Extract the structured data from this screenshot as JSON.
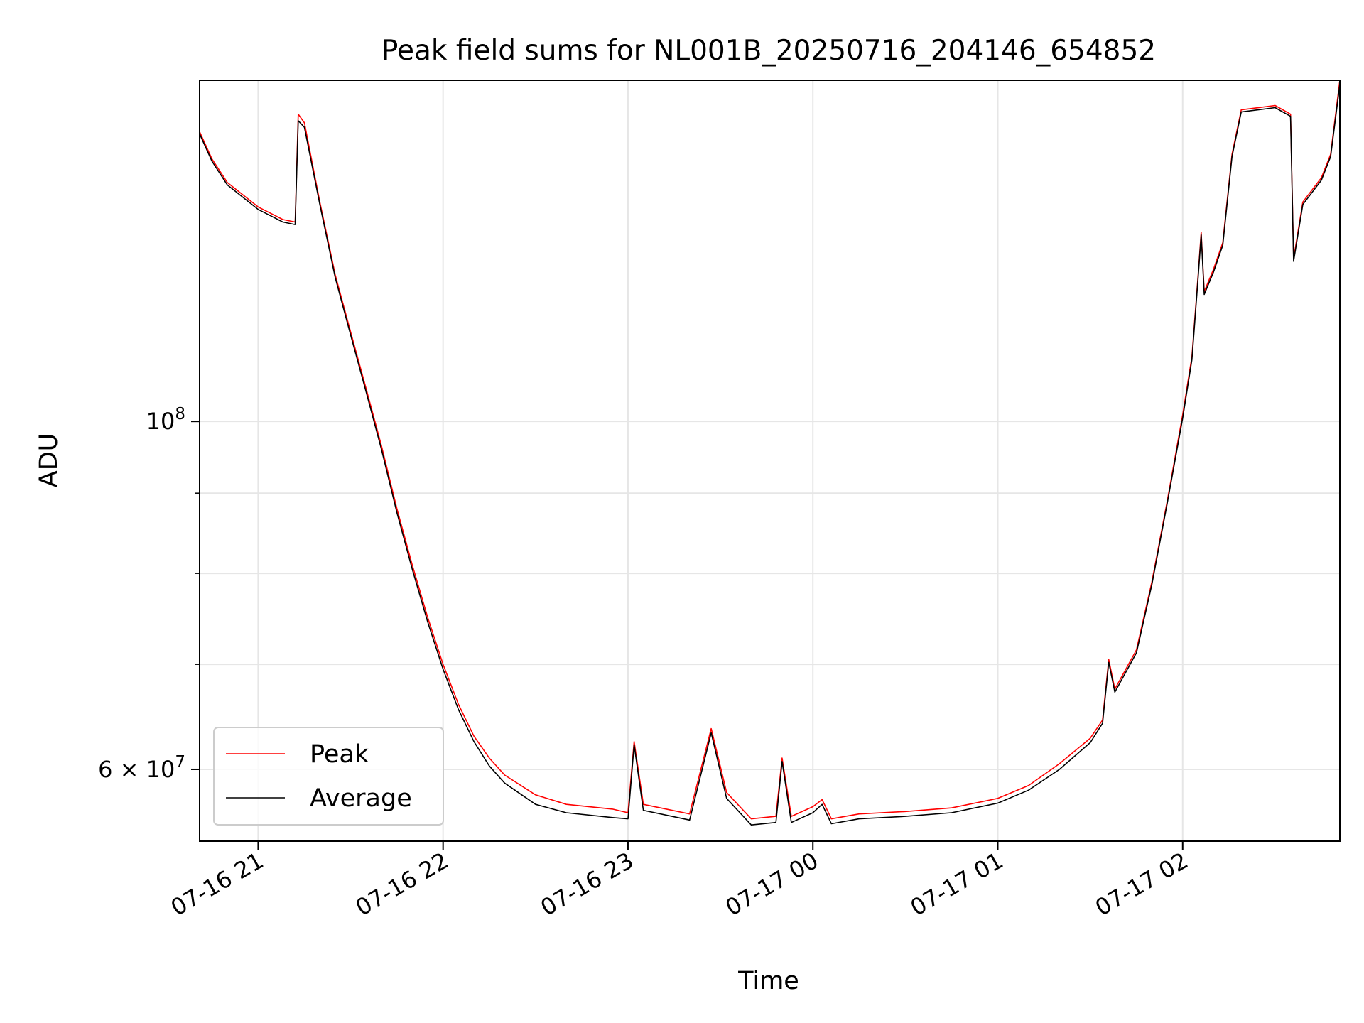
{
  "chart_data": {
    "type": "line",
    "title": "Peak field sums for NL001B_20250716_204146_654852",
    "xlabel": "Time",
    "ylabel": "ADU",
    "y_scale": "log",
    "xlim": [
      "2025-07-16 20:41",
      "2025-07-17 02:51"
    ],
    "ylim": [
      54000000,
      165000000
    ],
    "x_ticks": [
      "07-16 21",
      "07-16 22",
      "07-16 23",
      "07-17 00",
      "07-17 01",
      "07-17 02"
    ],
    "y_ticks": [
      {
        "label_base": "10",
        "label_exp": "8",
        "value": 100000000,
        "mantissa": ""
      },
      {
        "label_base": "10",
        "label_exp": "7",
        "value": 60000000,
        "mantissa": "6"
      }
    ],
    "grid": true,
    "legend_location": "lower-left",
    "series": [
      {
        "name": "Peak",
        "color": "#ff0000",
        "points": [
          [
            "2025-07-16 20:41",
            153000000
          ],
          [
            "2025-07-16 20:45",
            147000000
          ],
          [
            "2025-07-16 20:50",
            142000000
          ],
          [
            "2025-07-16 21:00",
            137000000
          ],
          [
            "2025-07-16 21:08",
            134500000
          ],
          [
            "2025-07-16 21:12",
            134000000
          ],
          [
            "2025-07-16 21:13",
            157000000
          ],
          [
            "2025-07-16 21:15",
            155000000
          ],
          [
            "2025-07-16 21:20",
            138000000
          ],
          [
            "2025-07-16 21:25",
            124000000
          ],
          [
            "2025-07-16 21:30",
            114000000
          ],
          [
            "2025-07-16 21:35",
            105000000
          ],
          [
            "2025-07-16 21:40",
            96500000
          ],
          [
            "2025-07-16 21:45",
            88000000
          ],
          [
            "2025-07-16 21:50",
            81000000
          ],
          [
            "2025-07-16 21:55",
            75000000
          ],
          [
            "2025-07-16 22:00",
            70000000
          ],
          [
            "2025-07-16 22:05",
            66000000
          ],
          [
            "2025-07-16 22:10",
            63000000
          ],
          [
            "2025-07-16 22:15",
            61000000
          ],
          [
            "2025-07-16 22:20",
            59500000
          ],
          [
            "2025-07-16 22:30",
            57800000
          ],
          [
            "2025-07-16 22:40",
            57000000
          ],
          [
            "2025-07-16 22:55",
            56600000
          ],
          [
            "2025-07-16 23:00",
            56300000
          ],
          [
            "2025-07-16 23:02",
            62500000
          ],
          [
            "2025-07-16 23:05",
            57000000
          ],
          [
            "2025-07-16 23:20",
            56200000
          ],
          [
            "2025-07-16 23:27",
            63700000
          ],
          [
            "2025-07-16 23:32",
            58000000
          ],
          [
            "2025-07-16 23:40",
            55800000
          ],
          [
            "2025-07-16 23:48",
            56000000
          ],
          [
            "2025-07-16 23:50",
            61000000
          ],
          [
            "2025-07-16 23:53",
            56000000
          ],
          [
            "2025-07-17 00:00",
            56800000
          ],
          [
            "2025-07-17 00:03",
            57400000
          ],
          [
            "2025-07-17 00:06",
            55800000
          ],
          [
            "2025-07-17 00:15",
            56200000
          ],
          [
            "2025-07-17 00:30",
            56400000
          ],
          [
            "2025-07-17 00:45",
            56700000
          ],
          [
            "2025-07-17 01:00",
            57500000
          ],
          [
            "2025-07-17 01:10",
            58600000
          ],
          [
            "2025-07-17 01:20",
            60500000
          ],
          [
            "2025-07-17 01:30",
            62800000
          ],
          [
            "2025-07-17 01:34",
            64500000
          ],
          [
            "2025-07-17 01:36",
            70500000
          ],
          [
            "2025-07-17 01:38",
            67500000
          ],
          [
            "2025-07-17 01:45",
            71500000
          ],
          [
            "2025-07-17 01:50",
            79000000
          ],
          [
            "2025-07-17 01:55",
            89000000
          ],
          [
            "2025-07-17 02:00",
            101000000
          ],
          [
            "2025-07-17 02:03",
            110000000
          ],
          [
            "2025-07-17 02:05",
            124000000
          ],
          [
            "2025-07-17 02:06",
            132000000
          ],
          [
            "2025-07-17 02:07",
            121000000
          ],
          [
            "2025-07-17 02:10",
            125000000
          ],
          [
            "2025-07-17 02:13",
            130000000
          ],
          [
            "2025-07-17 02:16",
            148000000
          ],
          [
            "2025-07-17 02:19",
            158000000
          ],
          [
            "2025-07-17 02:30",
            159000000
          ],
          [
            "2025-07-17 02:35",
            157000000
          ],
          [
            "2025-07-17 02:36",
            127000000
          ],
          [
            "2025-07-17 02:39",
            138000000
          ],
          [
            "2025-07-17 02:45",
            143000000
          ],
          [
            "2025-07-17 02:48",
            148000000
          ],
          [
            "2025-07-17 02:51",
            165000000
          ]
        ]
      },
      {
        "name": "Average",
        "color": "#000000",
        "points": [
          [
            "2025-07-16 20:41",
            152500000
          ],
          [
            "2025-07-16 20:45",
            146500000
          ],
          [
            "2025-07-16 20:50",
            141500000
          ],
          [
            "2025-07-16 21:00",
            136500000
          ],
          [
            "2025-07-16 21:08",
            134000000
          ],
          [
            "2025-07-16 21:12",
            133500000
          ],
          [
            "2025-07-16 21:13",
            155500000
          ],
          [
            "2025-07-16 21:15",
            154000000
          ],
          [
            "2025-07-16 21:20",
            137500000
          ],
          [
            "2025-07-16 21:25",
            123500000
          ],
          [
            "2025-07-16 21:30",
            113500000
          ],
          [
            "2025-07-16 21:35",
            104500000
          ],
          [
            "2025-07-16 21:40",
            96000000
          ],
          [
            "2025-07-16 21:45",
            87500000
          ],
          [
            "2025-07-16 21:50",
            80500000
          ],
          [
            "2025-07-16 21:55",
            74500000
          ],
          [
            "2025-07-16 22:00",
            69500000
          ],
          [
            "2025-07-16 22:05",
            65500000
          ],
          [
            "2025-07-16 22:10",
            62500000
          ],
          [
            "2025-07-16 22:15",
            60300000
          ],
          [
            "2025-07-16 22:20",
            58800000
          ],
          [
            "2025-07-16 22:30",
            57000000
          ],
          [
            "2025-07-16 22:40",
            56300000
          ],
          [
            "2025-07-16 22:55",
            55900000
          ],
          [
            "2025-07-16 23:00",
            55800000
          ],
          [
            "2025-07-16 23:02",
            62200000
          ],
          [
            "2025-07-16 23:05",
            56500000
          ],
          [
            "2025-07-16 23:20",
            55700000
          ],
          [
            "2025-07-16 23:27",
            63300000
          ],
          [
            "2025-07-16 23:32",
            57500000
          ],
          [
            "2025-07-16 23:40",
            55300000
          ],
          [
            "2025-07-16 23:48",
            55500000
          ],
          [
            "2025-07-16 23:50",
            60700000
          ],
          [
            "2025-07-16 23:53",
            55500000
          ],
          [
            "2025-07-17 00:00",
            56300000
          ],
          [
            "2025-07-17 00:03",
            57000000
          ],
          [
            "2025-07-17 00:06",
            55400000
          ],
          [
            "2025-07-17 00:15",
            55800000
          ],
          [
            "2025-07-17 00:30",
            56000000
          ],
          [
            "2025-07-17 00:45",
            56300000
          ],
          [
            "2025-07-17 01:00",
            57100000
          ],
          [
            "2025-07-17 01:10",
            58200000
          ],
          [
            "2025-07-17 01:20",
            60000000
          ],
          [
            "2025-07-17 01:30",
            62400000
          ],
          [
            "2025-07-17 01:34",
            64200000
          ],
          [
            "2025-07-17 01:36",
            70200000
          ],
          [
            "2025-07-17 01:38",
            67200000
          ],
          [
            "2025-07-17 01:45",
            71200000
          ],
          [
            "2025-07-17 01:50",
            78700000
          ],
          [
            "2025-07-17 01:55",
            88700000
          ],
          [
            "2025-07-17 02:00",
            100500000
          ],
          [
            "2025-07-17 02:03",
            109500000
          ],
          [
            "2025-07-17 02:05",
            123500000
          ],
          [
            "2025-07-17 02:06",
            131500000
          ],
          [
            "2025-07-17 02:07",
            120500000
          ],
          [
            "2025-07-17 02:10",
            124500000
          ],
          [
            "2025-07-17 02:13",
            129500000
          ],
          [
            "2025-07-17 02:16",
            147500000
          ],
          [
            "2025-07-17 02:19",
            157500000
          ],
          [
            "2025-07-17 02:30",
            158500000
          ],
          [
            "2025-07-17 02:35",
            156500000
          ],
          [
            "2025-07-17 02:36",
            126500000
          ],
          [
            "2025-07-17 02:39",
            137500000
          ],
          [
            "2025-07-17 02:45",
            142500000
          ],
          [
            "2025-07-17 02:48",
            147500000
          ],
          [
            "2025-07-17 02:51",
            164000000
          ]
        ]
      }
    ]
  }
}
